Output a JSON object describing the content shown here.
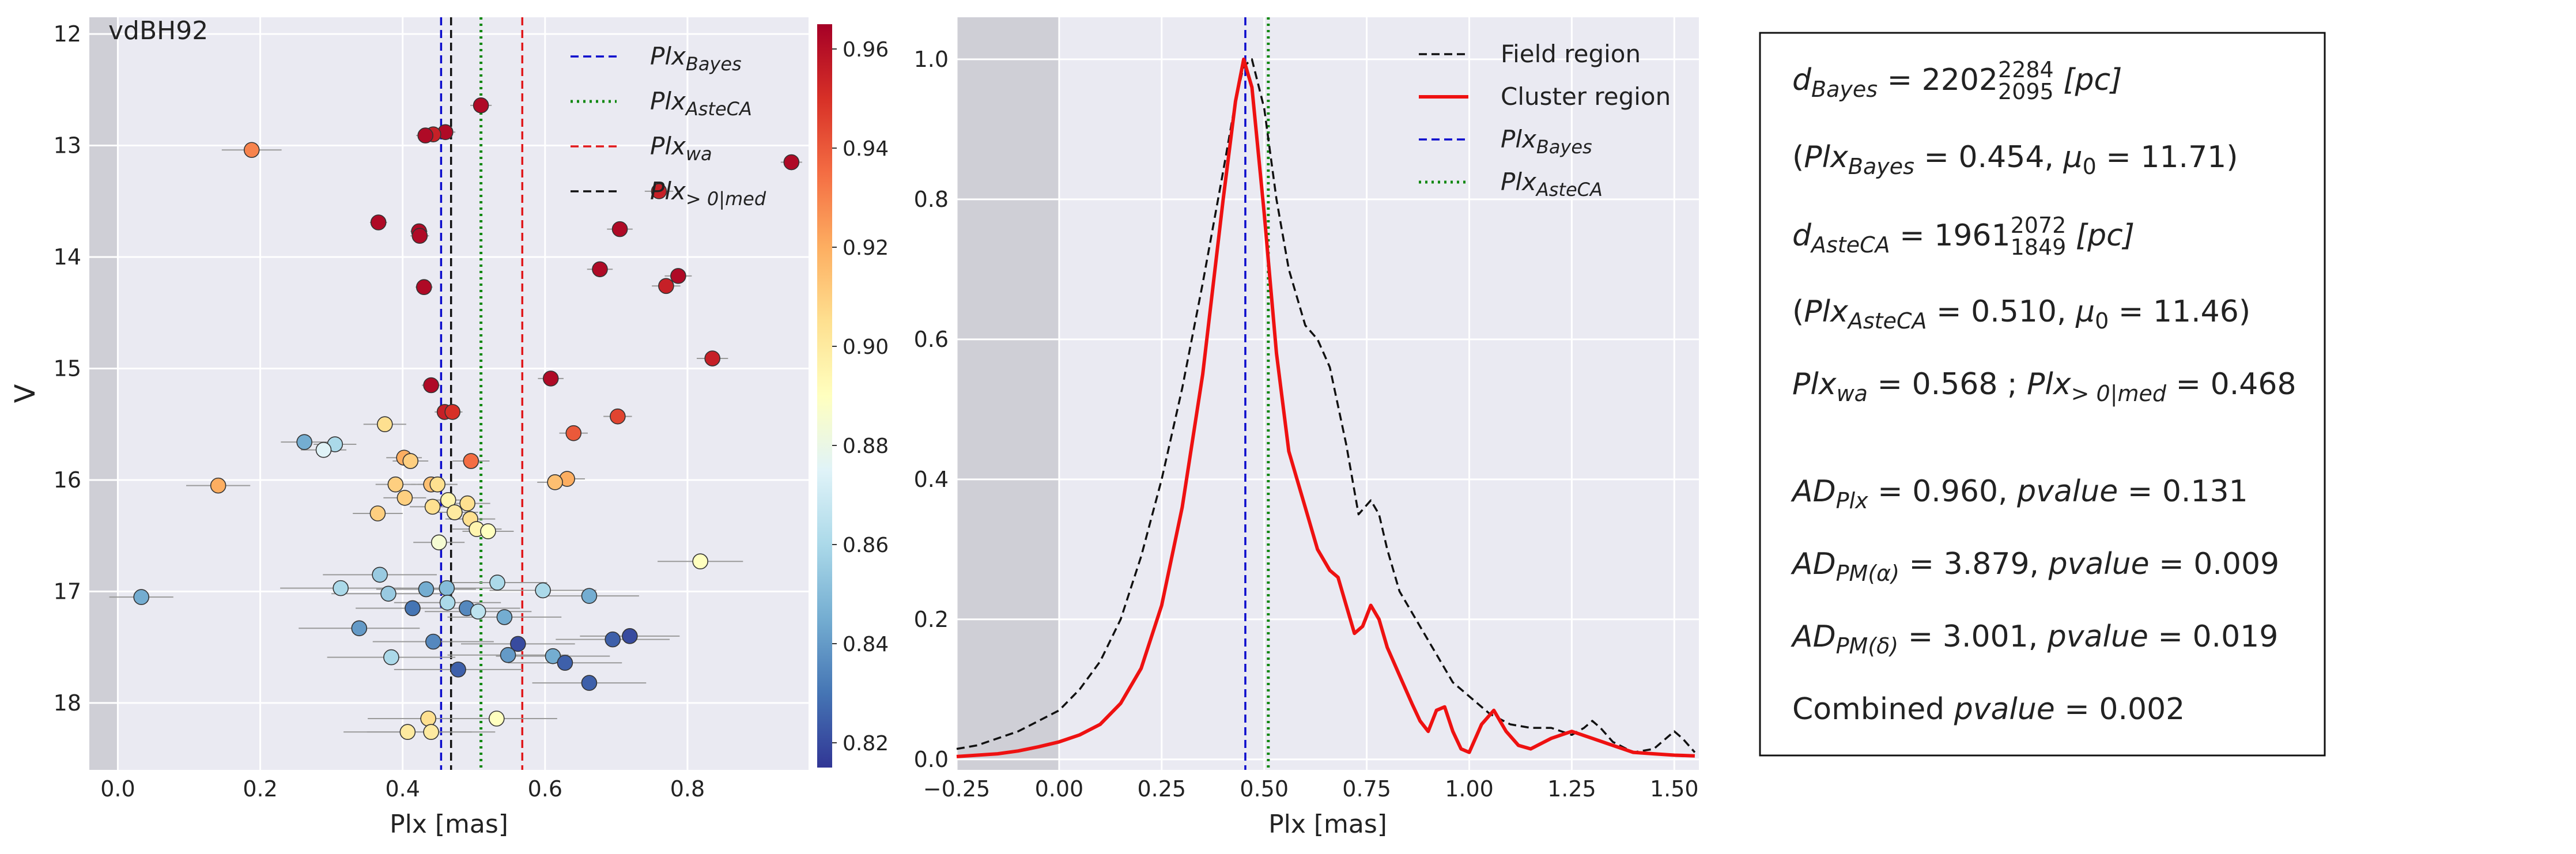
{
  "chart_data": [
    {
      "type": "scatter",
      "title": "vdBH92",
      "xlabel": "Plx [mas]",
      "ylabel": "V",
      "xlim": [
        -0.04,
        0.97
      ],
      "ylim": [
        18.6,
        11.85
      ],
      "y_inverted": true,
      "grid": true,
      "legend_position": "top-right",
      "xticks": [
        "0.0",
        "0.2",
        "0.4",
        "0.6",
        "0.8"
      ],
      "xtick_values": [
        0.0,
        0.2,
        0.4,
        0.6,
        0.8
      ],
      "yticks": [
        "12",
        "13",
        "14",
        "15",
        "16",
        "17",
        "18"
      ],
      "ytick_values": [
        12,
        13,
        14,
        15,
        16,
        17,
        18
      ],
      "shaded_region": [
        -0.04,
        0.0
      ],
      "colorbar": {
        "range": [
          0.815,
          0.965
        ],
        "ticks": [
          "0.96",
          "0.94",
          "0.92",
          "0.90",
          "0.88",
          "0.86",
          "0.84",
          "0.82"
        ],
        "tick_values": [
          0.96,
          0.94,
          0.92,
          0.9,
          0.88,
          0.86,
          0.84,
          0.82
        ]
      },
      "vlines": [
        {
          "label": "Plx_Bayes",
          "x": 0.454,
          "color": "#0a0acc",
          "style": "dashed"
        },
        {
          "label": "Plx_AsteCA",
          "x": 0.51,
          "color": "#118811",
          "style": "dotted"
        },
        {
          "label": "Plx_wa",
          "x": 0.568,
          "color": "#e0181b",
          "style": "dashed"
        },
        {
          "label": "Plx_>0|med",
          "x": 0.468,
          "color": "#111111",
          "style": "dashed"
        }
      ],
      "legend": [
        {
          "main": "Plx",
          "sub": "Bayes",
          "color": "#0a0acc",
          "style": "dashed"
        },
        {
          "main": "Plx",
          "sub": "AsteCA",
          "color": "#118811",
          "style": "dotted"
        },
        {
          "main": "Plx",
          "sub": "wa",
          "color": "#e0181b",
          "style": "dashed"
        },
        {
          "main": "Plx",
          "sub": "> 0|med",
          "color": "#111111",
          "style": "dashed"
        }
      ],
      "points": [
        {
          "x": 0.51,
          "y": 12.64,
          "xerr": 0.015,
          "c": 0.962
        },
        {
          "x": 0.46,
          "y": 12.88,
          "xerr": 0.014,
          "c": 0.962
        },
        {
          "x": 0.443,
          "y": 12.9,
          "xerr": 0.014,
          "c": 0.955
        },
        {
          "x": 0.432,
          "y": 12.91,
          "xerr": 0.013,
          "c": 0.962
        },
        {
          "x": 0.188,
          "y": 13.04,
          "xerr": 0.042,
          "c": 0.93
        },
        {
          "x": 0.946,
          "y": 13.15,
          "xerr": 0.015,
          "c": 0.962
        },
        {
          "x": 0.76,
          "y": 13.41,
          "xerr": 0.02,
          "c": 0.955
        },
        {
          "x": 0.366,
          "y": 13.69,
          "xerr": 0.012,
          "c": 0.962
        },
        {
          "x": 0.705,
          "y": 13.75,
          "xerr": 0.018,
          "c": 0.962
        },
        {
          "x": 0.423,
          "y": 13.77,
          "xerr": 0.012,
          "c": 0.962
        },
        {
          "x": 0.424,
          "y": 13.81,
          "xerr": 0.013,
          "c": 0.962
        },
        {
          "x": 0.677,
          "y": 14.11,
          "xerr": 0.018,
          "c": 0.962
        },
        {
          "x": 0.787,
          "y": 14.17,
          "xerr": 0.019,
          "c": 0.962
        },
        {
          "x": 0.43,
          "y": 14.27,
          "xerr": 0.012,
          "c": 0.962
        },
        {
          "x": 0.77,
          "y": 14.26,
          "xerr": 0.02,
          "c": 0.955
        },
        {
          "x": 0.835,
          "y": 14.91,
          "xerr": 0.022,
          "c": 0.955
        },
        {
          "x": 0.608,
          "y": 15.09,
          "xerr": 0.018,
          "c": 0.962
        },
        {
          "x": 0.44,
          "y": 15.15,
          "xerr": 0.013,
          "c": 0.962
        },
        {
          "x": 0.459,
          "y": 15.39,
          "xerr": 0.014,
          "c": 0.955
        },
        {
          "x": 0.47,
          "y": 15.39,
          "xerr": 0.014,
          "c": 0.95
        },
        {
          "x": 0.702,
          "y": 15.43,
          "xerr": 0.02,
          "c": 0.945
        },
        {
          "x": 0.375,
          "y": 15.5,
          "xerr": 0.03,
          "c": 0.905
        },
        {
          "x": 0.64,
          "y": 15.58,
          "xerr": 0.02,
          "c": 0.94
        },
        {
          "x": 0.262,
          "y": 15.66,
          "xerr": 0.033,
          "c": 0.845
        },
        {
          "x": 0.305,
          "y": 15.68,
          "xerr": 0.03,
          "c": 0.86
        },
        {
          "x": 0.289,
          "y": 15.73,
          "xerr": 0.032,
          "c": 0.875
        },
        {
          "x": 0.402,
          "y": 15.8,
          "xerr": 0.025,
          "c": 0.92
        },
        {
          "x": 0.411,
          "y": 15.83,
          "xerr": 0.025,
          "c": 0.91
        },
        {
          "x": 0.496,
          "y": 15.83,
          "xerr": 0.026,
          "c": 0.935
        },
        {
          "x": 0.631,
          "y": 15.99,
          "xerr": 0.025,
          "c": 0.92
        },
        {
          "x": 0.614,
          "y": 16.02,
          "xerr": 0.025,
          "c": 0.915
        },
        {
          "x": 0.39,
          "y": 16.04,
          "xerr": 0.028,
          "c": 0.91
        },
        {
          "x": 0.44,
          "y": 16.04,
          "xerr": 0.028,
          "c": 0.915
        },
        {
          "x": 0.449,
          "y": 16.04,
          "xerr": 0.028,
          "c": 0.905
        },
        {
          "x": 0.141,
          "y": 16.05,
          "xerr": 0.045,
          "c": 0.92
        },
        {
          "x": 0.403,
          "y": 16.16,
          "xerr": 0.03,
          "c": 0.91
        },
        {
          "x": 0.464,
          "y": 16.18,
          "xerr": 0.03,
          "c": 0.895
        },
        {
          "x": 0.491,
          "y": 16.21,
          "xerr": 0.032,
          "c": 0.905
        },
        {
          "x": 0.442,
          "y": 16.24,
          "xerr": 0.032,
          "c": 0.905
        },
        {
          "x": 0.365,
          "y": 16.3,
          "xerr": 0.035,
          "c": 0.91
        },
        {
          "x": 0.473,
          "y": 16.29,
          "xerr": 0.033,
          "c": 0.9
        },
        {
          "x": 0.495,
          "y": 16.35,
          "xerr": 0.035,
          "c": 0.905
        },
        {
          "x": 0.504,
          "y": 16.44,
          "xerr": 0.035,
          "c": 0.895
        },
        {
          "x": 0.52,
          "y": 16.46,
          "xerr": 0.036,
          "c": 0.89
        },
        {
          "x": 0.451,
          "y": 16.56,
          "xerr": 0.036,
          "c": 0.885
        },
        {
          "x": 0.818,
          "y": 16.73,
          "xerr": 0.06,
          "c": 0.89
        },
        {
          "x": 0.368,
          "y": 16.85,
          "xerr": 0.08,
          "c": 0.855
        },
        {
          "x": 0.533,
          "y": 16.92,
          "xerr": 0.07,
          "c": 0.86
        },
        {
          "x": 0.313,
          "y": 16.97,
          "xerr": 0.085,
          "c": 0.86
        },
        {
          "x": 0.433,
          "y": 16.98,
          "xerr": 0.07,
          "c": 0.845
        },
        {
          "x": 0.462,
          "y": 16.97,
          "xerr": 0.07,
          "c": 0.85
        },
        {
          "x": 0.597,
          "y": 16.99,
          "xerr": 0.075,
          "c": 0.86
        },
        {
          "x": 0.38,
          "y": 17.02,
          "xerr": 0.08,
          "c": 0.855
        },
        {
          "x": 0.033,
          "y": 17.05,
          "xerr": 0.045,
          "c": 0.845
        },
        {
          "x": 0.662,
          "y": 17.04,
          "xerr": 0.07,
          "c": 0.845
        },
        {
          "x": 0.463,
          "y": 17.1,
          "xerr": 0.075,
          "c": 0.86
        },
        {
          "x": 0.414,
          "y": 17.15,
          "xerr": 0.08,
          "c": 0.83
        },
        {
          "x": 0.49,
          "y": 17.15,
          "xerr": 0.075,
          "c": 0.835
        },
        {
          "x": 0.506,
          "y": 17.18,
          "xerr": 0.075,
          "c": 0.865
        },
        {
          "x": 0.543,
          "y": 17.23,
          "xerr": 0.08,
          "c": 0.845
        },
        {
          "x": 0.339,
          "y": 17.33,
          "xerr": 0.085,
          "c": 0.84
        },
        {
          "x": 0.719,
          "y": 17.4,
          "xerr": 0.07,
          "c": 0.82
        },
        {
          "x": 0.695,
          "y": 17.43,
          "xerr": 0.08,
          "c": 0.825
        },
        {
          "x": 0.443,
          "y": 17.45,
          "xerr": 0.085,
          "c": 0.835
        },
        {
          "x": 0.562,
          "y": 17.47,
          "xerr": 0.08,
          "c": 0.82
        },
        {
          "x": 0.548,
          "y": 17.57,
          "xerr": 0.085,
          "c": 0.84
        },
        {
          "x": 0.384,
          "y": 17.59,
          "xerr": 0.09,
          "c": 0.86
        },
        {
          "x": 0.611,
          "y": 17.58,
          "xerr": 0.08,
          "c": 0.845
        },
        {
          "x": 0.628,
          "y": 17.64,
          "xerr": 0.08,
          "c": 0.825
        },
        {
          "x": 0.478,
          "y": 17.7,
          "xerr": 0.09,
          "c": 0.825
        },
        {
          "x": 0.662,
          "y": 17.82,
          "xerr": 0.08,
          "c": 0.825
        },
        {
          "x": 0.436,
          "y": 18.14,
          "xerr": 0.085,
          "c": 0.905
        },
        {
          "x": 0.532,
          "y": 18.14,
          "xerr": 0.085,
          "c": 0.89
        },
        {
          "x": 0.407,
          "y": 18.26,
          "xerr": 0.09,
          "c": 0.9
        },
        {
          "x": 0.44,
          "y": 18.26,
          "xerr": 0.09,
          "c": 0.9
        }
      ]
    },
    {
      "type": "line",
      "xlabel": "Plx [mas]",
      "ylabel": "",
      "xlim": [
        -0.25,
        1.56
      ],
      "ylim": [
        -0.015,
        1.06
      ],
      "grid": true,
      "legend_position": "top-right",
      "xticks": [
        "−0.25",
        "0.00",
        "0.25",
        "0.50",
        "0.75",
        "1.00",
        "1.25",
        "1.50"
      ],
      "xtick_values": [
        -0.25,
        0.0,
        0.25,
        0.5,
        0.75,
        1.0,
        1.25,
        1.5
      ],
      "yticks": [
        "0.0",
        "0.2",
        "0.4",
        "0.6",
        "0.8",
        "1.0"
      ],
      "ytick_values": [
        0.0,
        0.2,
        0.4,
        0.6,
        0.8,
        1.0
      ],
      "shaded_region": [
        -0.25,
        0.0
      ],
      "vlines": [
        {
          "label": "Plx_Bayes",
          "x": 0.454,
          "color": "#0a0acc",
          "style": "dashed"
        },
        {
          "label": "Plx_AsteCA",
          "x": 0.51,
          "color": "#118811",
          "style": "dotted"
        }
      ],
      "legend": [
        {
          "main": "Field region",
          "sub": "",
          "color": "#111111",
          "style": "dashed",
          "italic": false
        },
        {
          "main": "Cluster region",
          "sub": "",
          "color": "#ee1111",
          "style": "solid",
          "italic": false
        },
        {
          "main": "Plx",
          "sub": "Bayes",
          "color": "#0a0acc",
          "style": "dashed",
          "italic": true
        },
        {
          "main": "Plx",
          "sub": "AsteCA",
          "color": "#118811",
          "style": "dotted",
          "italic": true
        }
      ],
      "series": [
        {
          "name": "Field region",
          "color": "#111111",
          "style": "dashed",
          "x": [
            -0.25,
            -0.2,
            -0.15,
            -0.1,
            -0.05,
            0.0,
            0.05,
            0.1,
            0.15,
            0.2,
            0.25,
            0.3,
            0.35,
            0.4,
            0.43,
            0.45,
            0.47,
            0.5,
            0.53,
            0.56,
            0.6,
            0.63,
            0.66,
            0.7,
            0.73,
            0.76,
            0.78,
            0.8,
            0.83,
            0.86,
            0.9,
            0.93,
            0.96,
            1.0,
            1.05,
            1.1,
            1.15,
            1.2,
            1.25,
            1.28,
            1.3,
            1.32,
            1.35,
            1.4,
            1.45,
            1.48,
            1.5,
            1.52,
            1.55
          ],
          "y": [
            0.015,
            0.02,
            0.03,
            0.04,
            0.055,
            0.07,
            0.1,
            0.14,
            0.2,
            0.29,
            0.4,
            0.53,
            0.68,
            0.84,
            0.94,
            0.99,
            1.0,
            0.93,
            0.8,
            0.7,
            0.62,
            0.6,
            0.56,
            0.45,
            0.35,
            0.37,
            0.35,
            0.3,
            0.24,
            0.21,
            0.17,
            0.14,
            0.11,
            0.09,
            0.065,
            0.05,
            0.045,
            0.045,
            0.035,
            0.045,
            0.055,
            0.045,
            0.025,
            0.01,
            0.015,
            0.03,
            0.04,
            0.03,
            0.01
          ]
        },
        {
          "name": "Cluster region",
          "color": "#ee1111",
          "style": "solid",
          "x": [
            -0.25,
            -0.15,
            -0.1,
            -0.05,
            0.0,
            0.05,
            0.1,
            0.15,
            0.2,
            0.25,
            0.3,
            0.35,
            0.4,
            0.43,
            0.45,
            0.47,
            0.5,
            0.53,
            0.56,
            0.6,
            0.63,
            0.66,
            0.68,
            0.7,
            0.72,
            0.74,
            0.76,
            0.78,
            0.8,
            0.83,
            0.86,
            0.88,
            0.9,
            0.92,
            0.94,
            0.96,
            0.98,
            1.0,
            1.03,
            1.06,
            1.09,
            1.12,
            1.15,
            1.2,
            1.25,
            1.3,
            1.35,
            1.4,
            1.45,
            1.5,
            1.55
          ],
          "y": [
            0.004,
            0.008,
            0.012,
            0.018,
            0.025,
            0.035,
            0.05,
            0.08,
            0.13,
            0.22,
            0.36,
            0.55,
            0.8,
            0.94,
            1.0,
            0.96,
            0.78,
            0.58,
            0.44,
            0.36,
            0.3,
            0.27,
            0.26,
            0.22,
            0.18,
            0.19,
            0.22,
            0.2,
            0.16,
            0.12,
            0.08,
            0.055,
            0.04,
            0.07,
            0.075,
            0.04,
            0.015,
            0.01,
            0.05,
            0.07,
            0.04,
            0.02,
            0.015,
            0.03,
            0.04,
            0.03,
            0.02,
            0.01,
            0.008,
            0.006,
            0.005
          ]
        }
      ]
    }
  ],
  "info_box": {
    "lines": [
      {
        "kind": "dist",
        "var": "d",
        "sub": "Bayes",
        "val": "2202",
        "hi": "2284",
        "lo": "2095",
        "unit": "[pc]"
      },
      {
        "kind": "paren",
        "var": "Plx",
        "sub": "Bayes",
        "val": "0.454",
        "mu": "11.71"
      },
      {
        "kind": "dist",
        "var": "d",
        "sub": "AsteCA",
        "val": "1961",
        "hi": "2072",
        "lo": "1849",
        "unit": "[pc]"
      },
      {
        "kind": "paren",
        "var": "Plx",
        "sub": "AsteCA",
        "val": "0.510",
        "mu": "11.46"
      },
      {
        "kind": "wa",
        "a_var": "Plx",
        "a_sub": "wa",
        "a_val": "0.568",
        "sep": ";",
        "b_var": "Plx",
        "b_sub": "> 0|med",
        "b_val": "0.468"
      },
      {
        "kind": "ad",
        "var": "AD",
        "sub": "Plx",
        "val": "0.960",
        "pname": "pvalue",
        "pval": "0.131"
      },
      {
        "kind": "ad",
        "var": "AD",
        "sub": "PM(α)",
        "val": "3.879",
        "pname": "pvalue",
        "pval": "0.009"
      },
      {
        "kind": "ad",
        "var": "AD",
        "sub": "PM(δ)",
        "val": "3.001",
        "pname": "pvalue",
        "pval": "0.019"
      },
      {
        "kind": "comb",
        "label": "Combined",
        "pname": "pvalue",
        "pval": "0.002"
      }
    ],
    "mu_symbol": "μ",
    "mu_sub": "0"
  }
}
